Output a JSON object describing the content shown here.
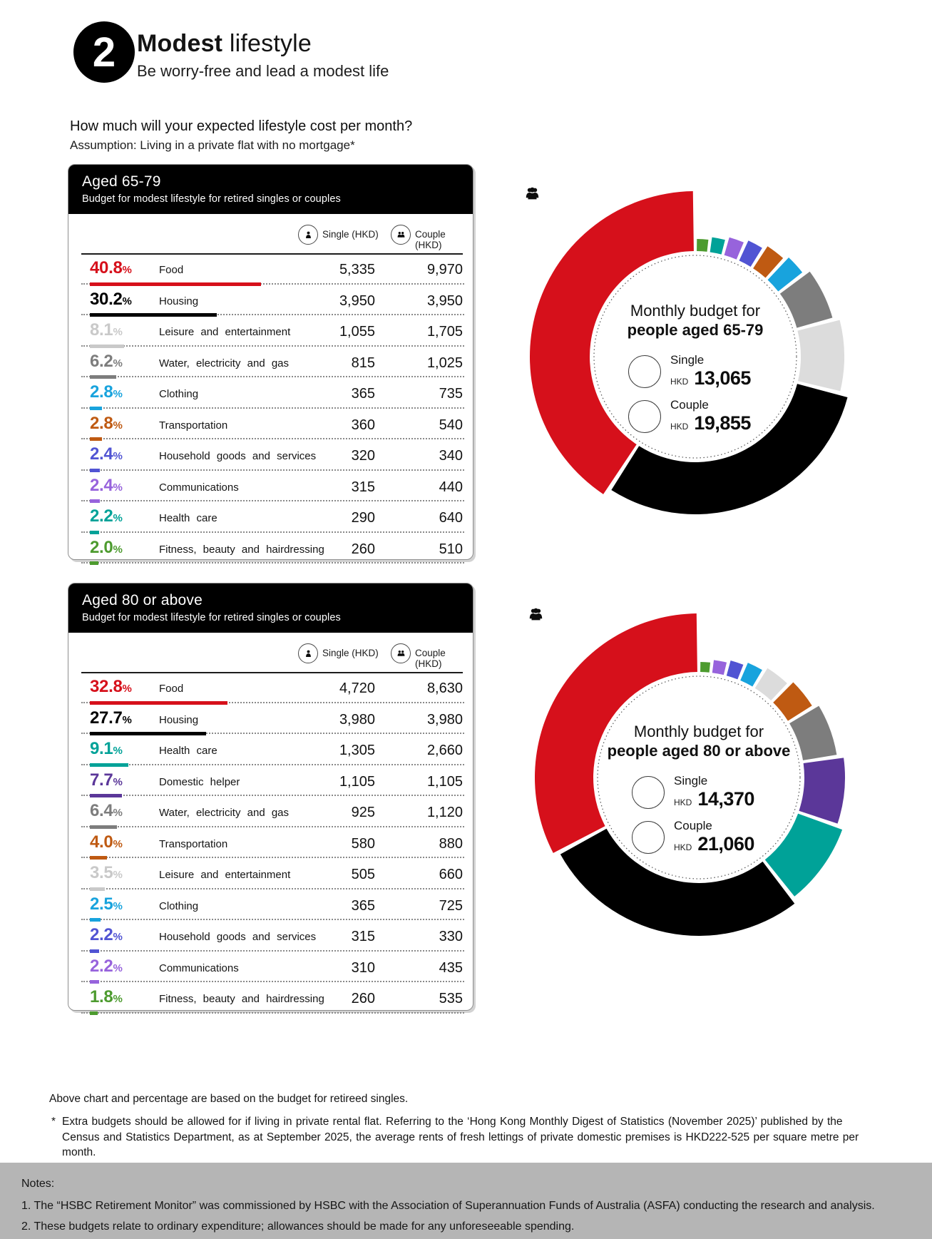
{
  "header": {
    "number": "2",
    "title_bold": "Modest",
    "title_light": "lifestyle",
    "subtitle": "Be worry-free and lead a modest life",
    "question": "How much will your expected lifestyle cost per month?",
    "assumption": "Assumption: Living in a private flat with no mortgage*"
  },
  "columns": {
    "single": "Single (HKD)",
    "couple": "Couple (HKD)"
  },
  "cards": [
    {
      "title": "Aged 65-79",
      "subtitle": "Budget for modest lifestyle for retired singles or couples",
      "rows": [
        {
          "pct": "40.8",
          "label": "Food",
          "single": "5,335",
          "couple": "9,970",
          "color": "#d6101b"
        },
        {
          "pct": "30.2",
          "label": "Housing",
          "single": "3,950",
          "couple": "3,950",
          "color": "#000000"
        },
        {
          "pct": "8.1",
          "label": "Leisure and entertainment",
          "single": "1,055",
          "couple": "1,705",
          "color": "#c9c9c9"
        },
        {
          "pct": "6.2",
          "label": "Water, electricity and gas",
          "single": "815",
          "couple": "1,025",
          "color": "#7d7d7d"
        },
        {
          "pct": "2.8",
          "label": "Clothing",
          "single": "365",
          "couple": "735",
          "color": "#18a3dd"
        },
        {
          "pct": "2.8",
          "label": "Transportation",
          "single": "360",
          "couple": "540",
          "color": "#bf5a12"
        },
        {
          "pct": "2.4",
          "label": "Household goods and services",
          "single": "320",
          "couple": "340",
          "color": "#5154d3"
        },
        {
          "pct": "2.4",
          "label": "Communications",
          "single": "315",
          "couple": "440",
          "color": "#9763dc"
        },
        {
          "pct": "2.2",
          "label": "Health care",
          "single": "290",
          "couple": "640",
          "color": "#00a298"
        },
        {
          "pct": "2.0",
          "label": "Fitness, beauty and hairdressing",
          "single": "260",
          "couple": "510",
          "color": "#4d9b2f"
        }
      ]
    },
    {
      "title": "Aged 80 or above",
      "subtitle": "Budget for modest lifestyle for retired singles or couples",
      "rows": [
        {
          "pct": "32.8",
          "label": "Food",
          "single": "4,720",
          "couple": "8,630",
          "color": "#d6101b"
        },
        {
          "pct": "27.7",
          "label": "Housing",
          "single": "3,980",
          "couple": "3,980",
          "color": "#000000"
        },
        {
          "pct": "9.1",
          "label": "Health care",
          "single": "1,305",
          "couple": "2,660",
          "color": "#00a298"
        },
        {
          "pct": "7.7",
          "label": "Domestic helper",
          "single": "1,105",
          "couple": "1,105",
          "color": "#5b3799"
        },
        {
          "pct": "6.4",
          "label": "Water, electricity and gas",
          "single": "925",
          "couple": "1,120",
          "color": "#7d7d7d"
        },
        {
          "pct": "4.0",
          "label": "Transportation",
          "single": "580",
          "couple": "880",
          "color": "#bf5a12"
        },
        {
          "pct": "3.5",
          "label": "Leisure and entertainment",
          "single": "505",
          "couple": "660",
          "color": "#c9c9c9"
        },
        {
          "pct": "2.5",
          "label": "Clothing",
          "single": "365",
          "couple": "725",
          "color": "#18a3dd"
        },
        {
          "pct": "2.2",
          "label": "Household goods and services",
          "single": "315",
          "couple": "330",
          "color": "#5154d3"
        },
        {
          "pct": "2.2",
          "label": "Communications",
          "single": "310",
          "couple": "435",
          "color": "#9763dc"
        },
        {
          "pct": "1.8",
          "label": "Fitness, beauty and hairdressing",
          "single": "260",
          "couple": "535",
          "color": "#4d9b2f"
        }
      ]
    }
  ],
  "donuts": [
    {
      "line1": "Monthly budget for",
      "line2": "people aged 65-79",
      "single_label": "Single",
      "couple_label": "Couple",
      "currency": "HKD",
      "single_value": "13,065",
      "couple_value": "19,855"
    },
    {
      "line1": "Monthly budget for",
      "line2": "people aged 80 or above",
      "single_label": "Single",
      "couple_label": "Couple",
      "currency": "HKD",
      "single_value": "14,370",
      "couple_value": "21,060"
    }
  ],
  "chart_data": [
    {
      "type": "pie",
      "variant": "donut-rose (outer radius grows with share, thin white gaps, dotted inner circle)",
      "title": "Monthly budget for people aged 65-79",
      "unit": "percent of retired-single budget",
      "center_totals": {
        "single_hkd": "13,065",
        "couple_hkd": "19,855"
      },
      "inner_radius_px": 148,
      "segments_clockwise_from_top": [
        {
          "label": "Fitness, beauty and hairdressing",
          "value": 2.0,
          "color": "#4d9b2f",
          "outer_radius_px": 165
        },
        {
          "label": "Health care",
          "value": 2.2,
          "color": "#00a298",
          "outer_radius_px": 169
        },
        {
          "label": "Communications",
          "value": 2.4,
          "color": "#9763dc",
          "outer_radius_px": 174
        },
        {
          "label": "Household goods and services",
          "value": 2.4,
          "color": "#5154d3",
          "outer_radius_px": 179
        },
        {
          "label": "Transportation",
          "value": 2.8,
          "color": "#bf5a12",
          "outer_radius_px": 185
        },
        {
          "label": "Clothing",
          "value": 2.8,
          "color": "#18a3dd",
          "outer_radius_px": 191
        },
        {
          "label": "Water, electricity and gas",
          "value": 6.2,
          "color": "#7d7d7d",
          "outer_radius_px": 200
        },
        {
          "label": "Leisure and entertainment",
          "value": 8.1,
          "color": "#dcdcdc",
          "outer_radius_px": 209
        },
        {
          "label": "Housing",
          "value": 30.2,
          "color": "#000000",
          "outer_radius_px": 221
        },
        {
          "label": "Food",
          "value": 40.8,
          "color": "#d6101b",
          "outer_radius_px": 232
        }
      ]
    },
    {
      "type": "pie",
      "variant": "donut-rose (outer radius grows with share, thin white gaps, dotted inner circle)",
      "title": "Monthly budget for people aged 80 or above",
      "unit": "percent of retired-single budget",
      "center_totals": {
        "single_hkd": "14,370",
        "couple_hkd": "21,060"
      },
      "inner_radius_px": 148,
      "segments_clockwise_from_top": [
        {
          "label": "Fitness, beauty and hairdressing",
          "value": 1.8,
          "color": "#4d9b2f",
          "outer_radius_px": 162
        },
        {
          "label": "Communications",
          "value": 2.2,
          "color": "#9763dc",
          "outer_radius_px": 166
        },
        {
          "label": "Household goods and services",
          "value": 2.2,
          "color": "#5154d3",
          "outer_radius_px": 170
        },
        {
          "label": "Clothing",
          "value": 2.5,
          "color": "#18a3dd",
          "outer_radius_px": 175
        },
        {
          "label": "Leisure and entertainment",
          "value": 3.5,
          "color": "#dcdcdc",
          "outer_radius_px": 181
        },
        {
          "label": "Transportation",
          "value": 4.0,
          "color": "#bf5a12",
          "outer_radius_px": 188
        },
        {
          "label": "Water, electricity and gas",
          "value": 6.4,
          "color": "#7d7d7d",
          "outer_radius_px": 196
        },
        {
          "label": "Domestic helper",
          "value": 7.7,
          "color": "#5b3799",
          "outer_radius_px": 205
        },
        {
          "label": "Health care",
          "value": 9.1,
          "color": "#00a298",
          "outer_radius_px": 214
        },
        {
          "label": "Housing",
          "value": 27.7,
          "color": "#000000",
          "outer_radius_px": 222
        },
        {
          "label": "Food",
          "value": 32.8,
          "color": "#d6101b",
          "outer_radius_px": 230
        }
      ]
    }
  ],
  "footnotes": {
    "basis": "Above chart and percentage are based on the budget for retireed singles.",
    "star": "*",
    "rental": "Extra budgets should be allowed for if living in private rental flat. Referring to the ‘Hong Kong Monthly Digest of Statistics (November 2025)’ published by the Census and Statistics Department, as at September 2025, the average rents of fresh lettings of private domestic premises is HKD222-525 per square metre per month."
  },
  "notes": {
    "title": "Notes:",
    "items": [
      "1. The “HSBC Retirement Monitor” was commissioned by HSBC with the Association of Superannuation Funds of Australia (ASFA) conducting the research and analysis.",
      "2. These budgets relate to ordinary expenditure; allowances should be made for any unforeseeable spending."
    ]
  }
}
